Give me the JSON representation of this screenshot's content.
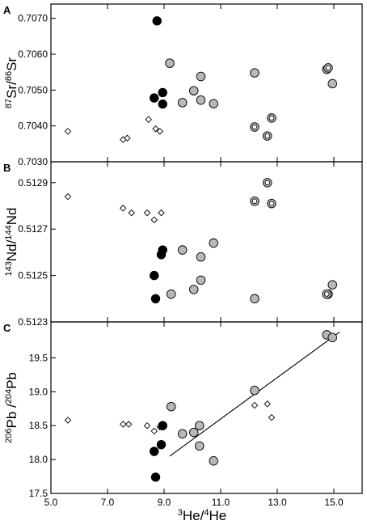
{
  "figure": {
    "x_label_sup": "3",
    "x_label_main": "He/",
    "x_label_sup2": "4",
    "x_label_end": "He",
    "x_ticks": [
      "5.0",
      "7.0",
      "9.0",
      "11.0",
      "13.0",
      "15.0"
    ]
  },
  "chart_data": [
    {
      "panel": "A",
      "type": "scatter",
      "ylabel_sup1": "87",
      "ylabel_a": "Sr/",
      "ylabel_sup2": "86",
      "ylabel_b": "Sr",
      "xlim": [
        5.0,
        16.0
      ],
      "ylim": [
        0.703,
        0.7074
      ],
      "y_ticks": [
        "0.7030",
        "0.7040",
        "0.7050",
        "0.7060",
        "0.7070"
      ],
      "series": [
        {
          "style": "open-diamond",
          "points": [
            [
              5.6,
              0.70385
            ],
            [
              7.55,
              0.70362
            ],
            [
              7.7,
              0.70366
            ],
            [
              8.45,
              0.70418
            ],
            [
              8.7,
              0.70392
            ],
            [
              8.85,
              0.70385
            ]
          ]
        },
        {
          "style": "black-circle",
          "points": [
            [
              8.75,
              0.70693
            ],
            [
              8.65,
              0.70478
            ],
            [
              8.95,
              0.70493
            ],
            [
              8.95,
              0.70461
            ]
          ]
        },
        {
          "style": "gray-circle",
          "points": [
            [
              9.2,
              0.70575
            ],
            [
              9.65,
              0.70465
            ],
            [
              10.05,
              0.70498
            ],
            [
              10.3,
              0.70538
            ],
            [
              10.3,
              0.70472
            ],
            [
              10.75,
              0.70462
            ],
            [
              12.2,
              0.70548
            ],
            [
              14.75,
              0.70558
            ],
            [
              14.95,
              0.70518
            ]
          ]
        },
        {
          "style": "ringed-circle",
          "points": [
            [
              12.2,
              0.70397
            ],
            [
              12.65,
              0.70372
            ],
            [
              12.8,
              0.70422
            ],
            [
              14.8,
              0.70562
            ]
          ]
        }
      ]
    },
    {
      "panel": "B",
      "type": "scatter",
      "ylabel_sup1": "143",
      "ylabel_a": "Nd/",
      "ylabel_sup2": "144",
      "ylabel_b": "Nd",
      "xlim": [
        5.0,
        16.0
      ],
      "ylim": [
        0.5123,
        0.51299
      ],
      "y_ticks": [
        "0.5123",
        "0.5125",
        "0.5127",
        "0.5129"
      ],
      "series": [
        {
          "style": "open-diamond",
          "points": [
            [
              5.6,
              0.51284
            ],
            [
              7.55,
              0.51279
            ],
            [
              7.85,
              0.51277
            ],
            [
              8.4,
              0.51277
            ],
            [
              8.65,
              0.51274
            ],
            [
              8.9,
              0.51277
            ]
          ]
        },
        {
          "style": "black-circle",
          "points": [
            [
              8.95,
              0.51261
            ],
            [
              8.9,
              0.51259
            ],
            [
              8.65,
              0.5125
            ],
            [
              8.7,
              0.5124
            ]
          ]
        },
        {
          "style": "gray-circle",
          "points": [
            [
              9.25,
              0.51242
            ],
            [
              9.65,
              0.51261
            ],
            [
              10.05,
              0.51244
            ],
            [
              10.3,
              0.51258
            ],
            [
              10.3,
              0.51248
            ],
            [
              10.75,
              0.51264
            ],
            [
              12.2,
              0.5124
            ],
            [
              14.8,
              0.51242
            ],
            [
              14.95,
              0.51246
            ]
          ]
        },
        {
          "style": "ringed-circle",
          "points": [
            [
              12.2,
              0.51282
            ],
            [
              12.65,
              0.5129
            ],
            [
              12.8,
              0.51281
            ],
            [
              14.75,
              0.51242
            ]
          ]
        }
      ]
    },
    {
      "panel": "C",
      "type": "scatter",
      "ylabel_sup1": "206",
      "ylabel_a": "Pb /",
      "ylabel_sup2": "204",
      "ylabel_b": "Pb",
      "xlim": [
        5.0,
        16.0
      ],
      "ylim": [
        17.5,
        20.03
      ],
      "y_ticks": [
        "17.5",
        "18.0",
        "18.5",
        "19.0",
        "19.5"
      ],
      "series": [
        {
          "style": "open-diamond",
          "points": [
            [
              5.6,
              18.58
            ],
            [
              7.55,
              18.52
            ],
            [
              7.75,
              18.52
            ],
            [
              8.4,
              18.5
            ],
            [
              8.65,
              18.42
            ],
            [
              8.85,
              18.48
            ],
            [
              12.2,
              18.8
            ],
            [
              12.65,
              18.82
            ],
            [
              12.8,
              18.62
            ]
          ]
        },
        {
          "style": "black-circle",
          "points": [
            [
              8.95,
              18.5
            ],
            [
              8.9,
              18.22
            ],
            [
              8.65,
              18.12
            ],
            [
              8.7,
              17.74
            ]
          ]
        },
        {
          "style": "gray-circle",
          "points": [
            [
              9.25,
              18.78
            ],
            [
              9.65,
              18.38
            ],
            [
              10.05,
              18.4
            ],
            [
              10.25,
              18.5
            ],
            [
              10.25,
              18.2
            ],
            [
              10.75,
              17.98
            ],
            [
              12.2,
              19.02
            ],
            [
              14.75,
              19.84
            ],
            [
              14.95,
              19.8
            ]
          ]
        },
        {
          "style": "ringed-circle",
          "points": []
        }
      ],
      "trend_line": [
        [
          9.2,
          18.05
        ],
        [
          15.2,
          19.88
        ]
      ]
    }
  ]
}
